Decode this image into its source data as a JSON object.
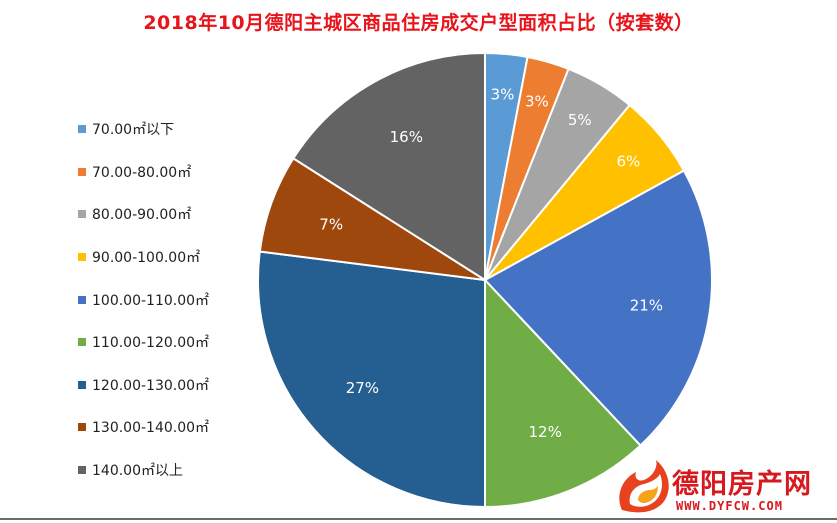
{
  "chart_data": {
    "type": "pie",
    "title": "2018年10月德阳主城区商品住房成交户型面积占比（按套数）",
    "categories": [
      "70.00㎡以下",
      "70.00-80.00㎡",
      "80.00-90.00㎡",
      "90.00-100.00㎡",
      "100.00-110.00㎡",
      "110.00-120.00㎡",
      "120.00-130.00㎡",
      "130.00-140.00㎡",
      "140.00㎡以上"
    ],
    "values": [
      3,
      3,
      5,
      6,
      21,
      12,
      27,
      7,
      16
    ],
    "labels": [
      "3%",
      "3%",
      "5%",
      "6%",
      "21%",
      "12%",
      "27%",
      "7%",
      "16%"
    ],
    "colors": [
      "#5b9bd5",
      "#ed7d31",
      "#a5a5a5",
      "#ffc000",
      "#4472c4",
      "#70ad47",
      "#255e91",
      "#9e480e",
      "#636363"
    ],
    "label_colors": [
      "#ffffff",
      "#ffffff",
      "#ffffff",
      "#ffffff",
      "#ffffff",
      "#ffffff",
      "#ffffff",
      "#ffffff",
      "#ffffff"
    ],
    "legend_position": "left"
  },
  "watermark": {
    "text": "德阳房产网",
    "url": "WWW.DYFCW.COM"
  }
}
